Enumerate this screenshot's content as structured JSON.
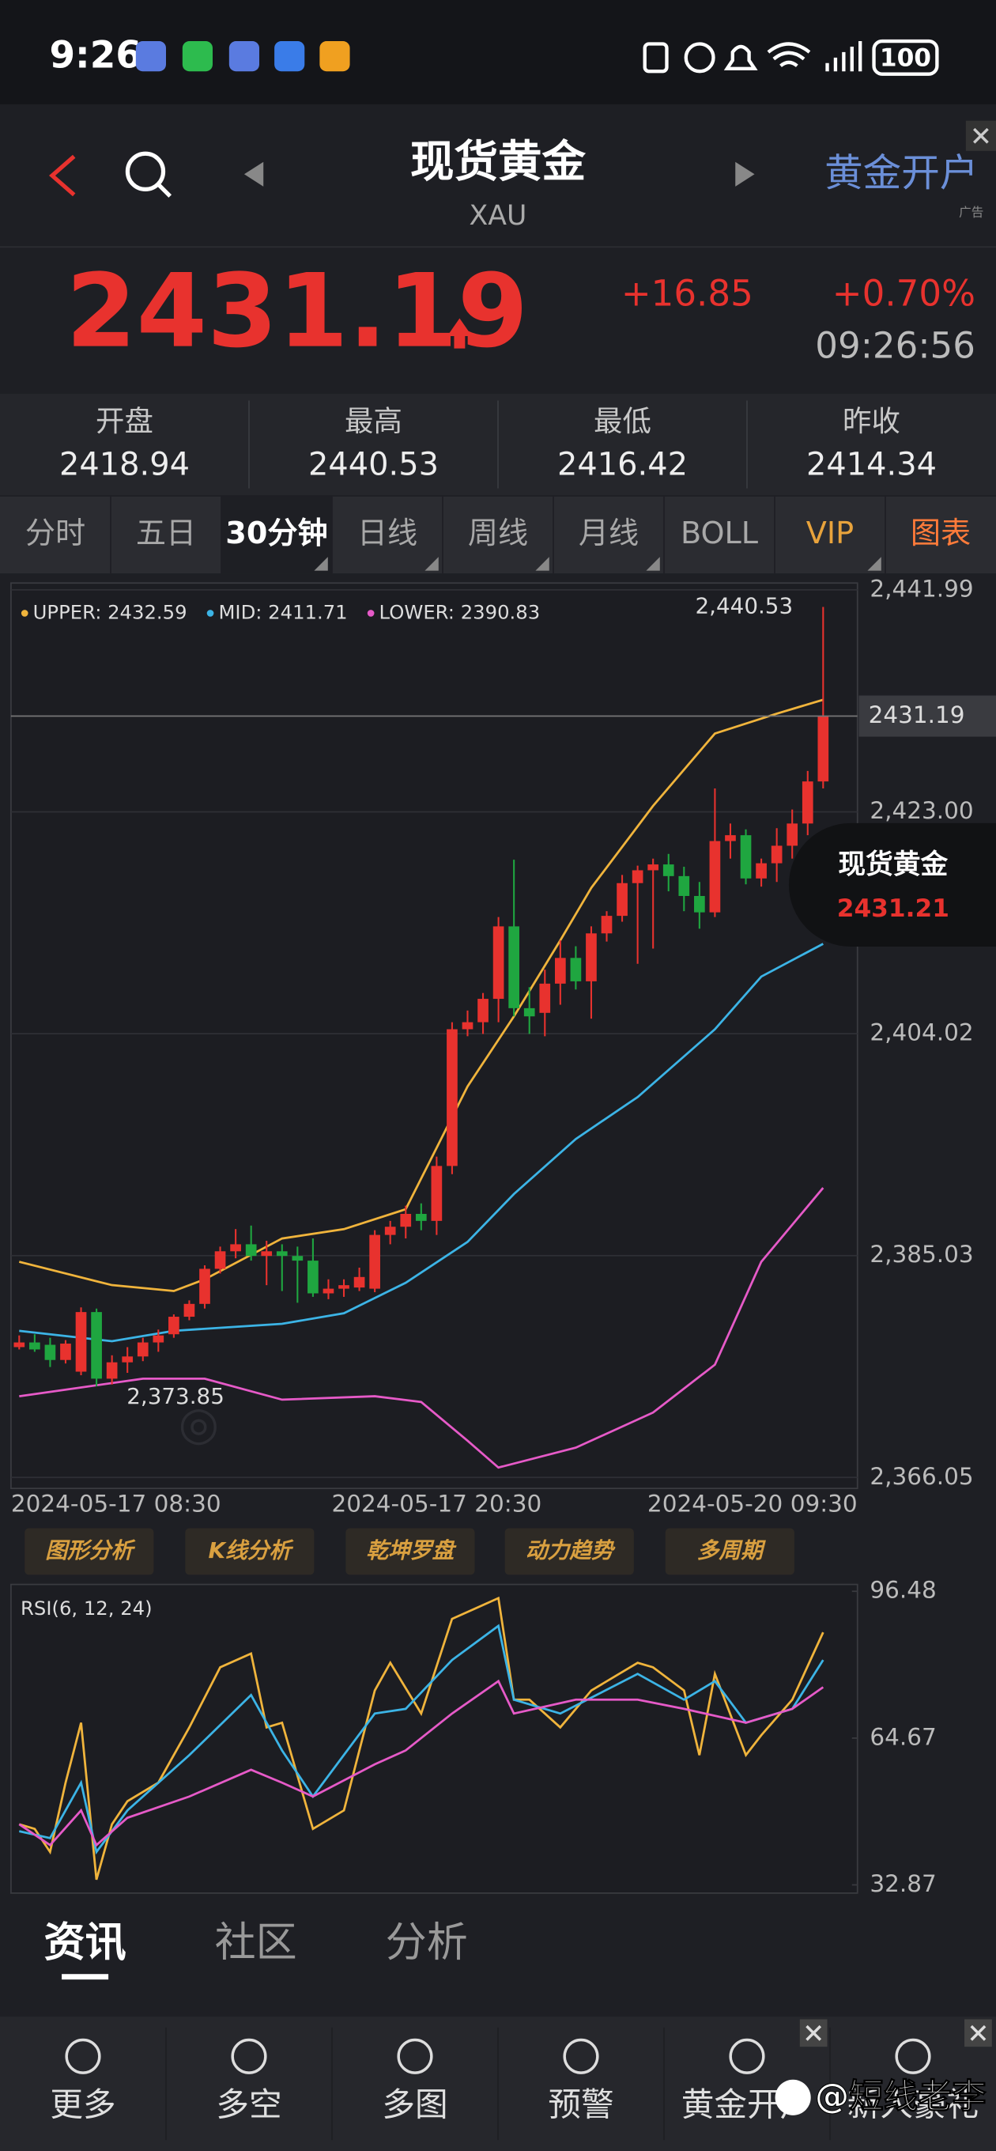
{
  "status_bar": {
    "time": "9:26",
    "battery": "100"
  },
  "header": {
    "title": "现货黄金",
    "subtitle": "XAU",
    "ad_button": "黄金开户",
    "ad_tag": "广告"
  },
  "quote": {
    "price": "2431.19",
    "change": "+16.85",
    "change_pct": "+0.70%",
    "time": "09:26:56"
  },
  "stats": [
    {
      "label": "开盘",
      "value": "2418.94"
    },
    {
      "label": "最高",
      "value": "2440.53"
    },
    {
      "label": "最低",
      "value": "2416.42"
    },
    {
      "label": "昨收",
      "value": "2414.34"
    }
  ],
  "tabs": [
    "分时",
    "五日",
    "30分钟",
    "日线",
    "周线",
    "月线",
    "BOLL",
    "VIP",
    "图表"
  ],
  "active_tab": 2,
  "floating_card": {
    "name": "现货黄金",
    "price": "2431.21"
  },
  "chart_data": [
    {
      "type": "candlestick",
      "up_color": "#e8322e",
      "down_color": "#1fa640",
      "xlim": [
        0,
        52
      ],
      "ylim": [
        2366.05,
        2441.99
      ],
      "yticks": [
        {
          "value": 2441.99,
          "label": "2,441.99"
        },
        {
          "value": 2423.0,
          "label": "2,423.00"
        },
        {
          "value": 2404.02,
          "label": "2,404.02"
        },
        {
          "value": 2385.03,
          "label": "2,385.03"
        },
        {
          "value": 2366.05,
          "label": "2,366.05"
        }
      ],
      "grid": true,
      "price_line": 2431.19,
      "categories": [
        "2024-05-17 08:30",
        null,
        null,
        null,
        null,
        null,
        null,
        null,
        null,
        null,
        null,
        null,
        null,
        null,
        null,
        null,
        null,
        null,
        null,
        null,
        null,
        null,
        null,
        null,
        null,
        null,
        null,
        "2024-05-17 20:30",
        null,
        null,
        null,
        null,
        null,
        null,
        null,
        null,
        null,
        null,
        null,
        null,
        null,
        null,
        null,
        null,
        null,
        null,
        null,
        "2024-05-20 09:30",
        null,
        null,
        null,
        null,
        null
      ],
      "open": [
        2377.2,
        2377.6,
        2377.4,
        2376.1,
        2375.1,
        2380.2,
        2374.5,
        2375.9,
        2376.4,
        2377.6,
        2378.3,
        2379.8,
        2380.9,
        2383.9,
        2385.4,
        2386.0,
        2385.0,
        2385.4,
        2385.0,
        2384.6,
        2381.8,
        2382.2,
        2382.3,
        2382.2,
        2386.8,
        2387.5,
        2388.6,
        2388.0,
        2392.7,
        2404.4,
        2405.0,
        2407.0,
        2413.2,
        2406.2,
        2405.8,
        2408.3,
        2410.5,
        2408.5,
        2412.6,
        2414.1,
        2416.9,
        2418.0,
        2418.5,
        2417.5,
        2415.8,
        2414.4,
        2420.5,
        2421.0,
        2417.3,
        2418.6,
        2420.1,
        2422.0,
        2425.6
      ],
      "high": [
        2378.2,
        2378.3,
        2378.0,
        2377.8,
        2380.6,
        2380.5,
        2376.5,
        2377.2,
        2378.0,
        2378.7,
        2380.0,
        2381.2,
        2384.2,
        2385.8,
        2387.3,
        2387.6,
        2386.3,
        2386.0,
        2385.8,
        2386.5,
        2383.0,
        2383.0,
        2384.0,
        2387.2,
        2388.0,
        2389.3,
        2389.5,
        2393.5,
        2405.0,
        2406.0,
        2407.5,
        2414.0,
        2418.9,
        2408.0,
        2409.5,
        2412.0,
        2411.5,
        2413.2,
        2414.5,
        2417.6,
        2418.4,
        2419.0,
        2419.4,
        2418.3,
        2417.0,
        2425.0,
        2422.0,
        2421.5,
        2419.0,
        2421.6,
        2423.2,
        2426.5,
        2440.53
      ],
      "low": [
        2377.0,
        2376.8,
        2375.5,
        2375.8,
        2374.8,
        2373.85,
        2374.0,
        2375.0,
        2376.0,
        2376.8,
        2378.0,
        2379.5,
        2380.5,
        2383.5,
        2384.8,
        2384.6,
        2382.5,
        2382.0,
        2381.0,
        2381.5,
        2381.3,
        2381.5,
        2382.0,
        2381.9,
        2386.0,
        2386.5,
        2387.2,
        2386.8,
        2392.0,
        2403.8,
        2404.0,
        2405.0,
        2405.5,
        2404.0,
        2403.8,
        2406.5,
        2407.8,
        2405.3,
        2411.9,
        2413.6,
        2410.0,
        2411.3,
        2416.2,
        2414.5,
        2413.0,
        2414.0,
        2419.0,
        2416.8,
        2416.6,
        2417.0,
        2419.0,
        2421.0,
        2425.0
      ],
      "close": [
        2377.6,
        2377.0,
        2376.1,
        2377.5,
        2380.2,
        2374.5,
        2375.9,
        2376.4,
        2377.6,
        2378.2,
        2379.8,
        2380.9,
        2383.9,
        2385.4,
        2386.0,
        2385.0,
        2385.4,
        2385.0,
        2384.6,
        2381.8,
        2382.2,
        2382.5,
        2383.2,
        2386.8,
        2387.5,
        2388.6,
        2388.0,
        2392.7,
        2404.4,
        2405.0,
        2407.0,
        2413.2,
        2406.2,
        2405.5,
        2408.3,
        2410.5,
        2408.5,
        2412.6,
        2414.1,
        2416.9,
        2418.0,
        2418.5,
        2417.5,
        2415.8,
        2414.4,
        2420.5,
        2421.0,
        2417.3,
        2418.6,
        2420.1,
        2422.0,
        2425.6,
        2431.19
      ],
      "series": [
        {
          "name": "UPPER: 2432.59",
          "color": "#f0b43c",
          "x": [
            0,
            6,
            10,
            12,
            17,
            21,
            25,
            29,
            32,
            35,
            37,
            41,
            45,
            49,
            52
          ],
          "values": [
            2384.5,
            2382.5,
            2382,
            2383,
            2386.5,
            2387.3,
            2389,
            2399.5,
            2405.5,
            2412,
            2416.5,
            2423.5,
            2429.7,
            2431.4,
            2432.59
          ]
        },
        {
          "name": "MID: 2411.71",
          "color": "#3cb4e6",
          "x": [
            0,
            6,
            10,
            17,
            21,
            25,
            29,
            32,
            36,
            40,
            45,
            48,
            52
          ],
          "values": [
            2378.6,
            2377.7,
            2378.6,
            2379.2,
            2380.1,
            2382.7,
            2386.2,
            2390.3,
            2395,
            2398.6,
            2404.4,
            2408.9,
            2411.71
          ]
        },
        {
          "name": "LOWER: 2390.83",
          "color": "#e65ac8",
          "x": [
            0,
            8,
            12,
            17,
            23,
            26,
            29,
            31,
            36,
            41,
            45,
            48,
            52
          ],
          "values": [
            2373,
            2374.5,
            2374.5,
            2372.7,
            2373,
            2372.5,
            2369.2,
            2366.9,
            2368.6,
            2371.6,
            2375.7,
            2384.5,
            2390.83
          ]
        }
      ],
      "annotations": [
        {
          "x": 52,
          "y": 2440.53,
          "label": "2,440.53"
        },
        {
          "x": 5,
          "y": 2373.85,
          "label": "2,373.85"
        }
      ]
    },
    {
      "type": "line",
      "title": "RSI(6, 12, 24)",
      "xlim": [
        0,
        52
      ],
      "ylim": [
        32.87,
        96.48
      ],
      "yticks": [
        96.48,
        64.67,
        32.87
      ],
      "grid": false,
      "series": [
        {
          "color": "#f0b43c",
          "x": [
            0,
            1,
            2,
            3,
            4,
            5,
            6,
            7,
            9,
            11,
            13,
            15,
            16,
            17,
            19,
            21,
            23,
            24,
            26,
            28,
            31,
            32,
            33,
            35,
            37,
            40,
            41,
            43,
            44,
            45,
            47,
            48,
            50,
            52
          ],
          "values": [
            46,
            45,
            40,
            55,
            68,
            34,
            46,
            51,
            55,
            67,
            80,
            83,
            67,
            68,
            45,
            49,
            75,
            81,
            70,
            90.5,
            95,
            73,
            73,
            67,
            75,
            81,
            80,
            75,
            61,
            78.6,
            61,
            65.3,
            73,
            87.6
          ]
        },
        {
          "color": "#3cb4e6",
          "x": [
            0,
            2,
            4,
            5,
            7,
            11,
            15,
            17,
            19,
            23,
            25,
            28,
            31,
            32,
            35,
            40,
            43,
            45,
            47,
            50,
            52
          ],
          "values": [
            44.5,
            43,
            55,
            40,
            49,
            61,
            74,
            62,
            52,
            70,
            71,
            81.6,
            89,
            73,
            70,
            78.6,
            73,
            77,
            68,
            71,
            81.6
          ]
        },
        {
          "color": "#e65ac8",
          "x": [
            0,
            2,
            4,
            5,
            7,
            11,
            15,
            17,
            19,
            23,
            25,
            28,
            31,
            32,
            36,
            40,
            43,
            47,
            50,
            52
          ],
          "values": [
            46,
            41.5,
            49,
            41.5,
            47.4,
            52,
            57.8,
            55,
            52,
            59,
            62,
            70,
            77,
            70,
            73,
            73,
            71,
            68,
            71,
            75.7
          ]
        }
      ]
    }
  ],
  "tools": [
    "图形分析",
    "K线分析",
    "乾坤罗盘",
    "动力趋势",
    "多周期"
  ],
  "content_tabs": [
    "资讯",
    "社区",
    "分析"
  ],
  "nav": [
    "更多",
    "多空",
    "多图",
    "预警",
    "黄金开户",
    "新人豪礼"
  ],
  "watermark": "@短线老李"
}
